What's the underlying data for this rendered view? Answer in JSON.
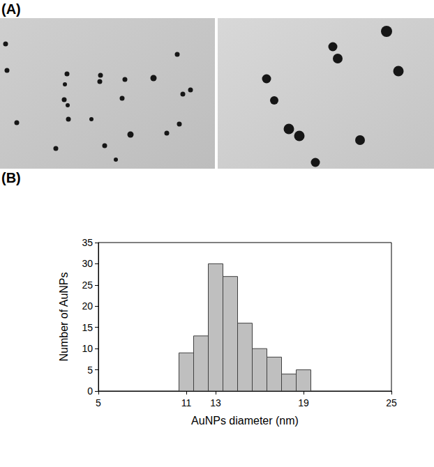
{
  "panel_labels": [
    "(A)",
    "(B)"
  ],
  "chart_data": {
    "type": "histogram",
    "x_label": "AuNPs diameter (nm)",
    "y_label": "Number of AuNPs",
    "bins": [
      10.5,
      11.5,
      12.5,
      13.5,
      14.5,
      15.5,
      16.5,
      17.5,
      18.5,
      19.5
    ],
    "values": [
      9,
      13,
      30,
      27,
      16,
      10,
      8,
      4,
      5
    ],
    "color": "#bfbfbf",
    "xlim": [
      5,
      25
    ],
    "xticks": [
      5,
      11,
      13,
      19,
      25
    ],
    "ylim": [
      0,
      35
    ],
    "yticks": [
      0,
      5,
      10,
      15,
      20,
      25,
      30,
      35
    ],
    "grid": false
  }
}
